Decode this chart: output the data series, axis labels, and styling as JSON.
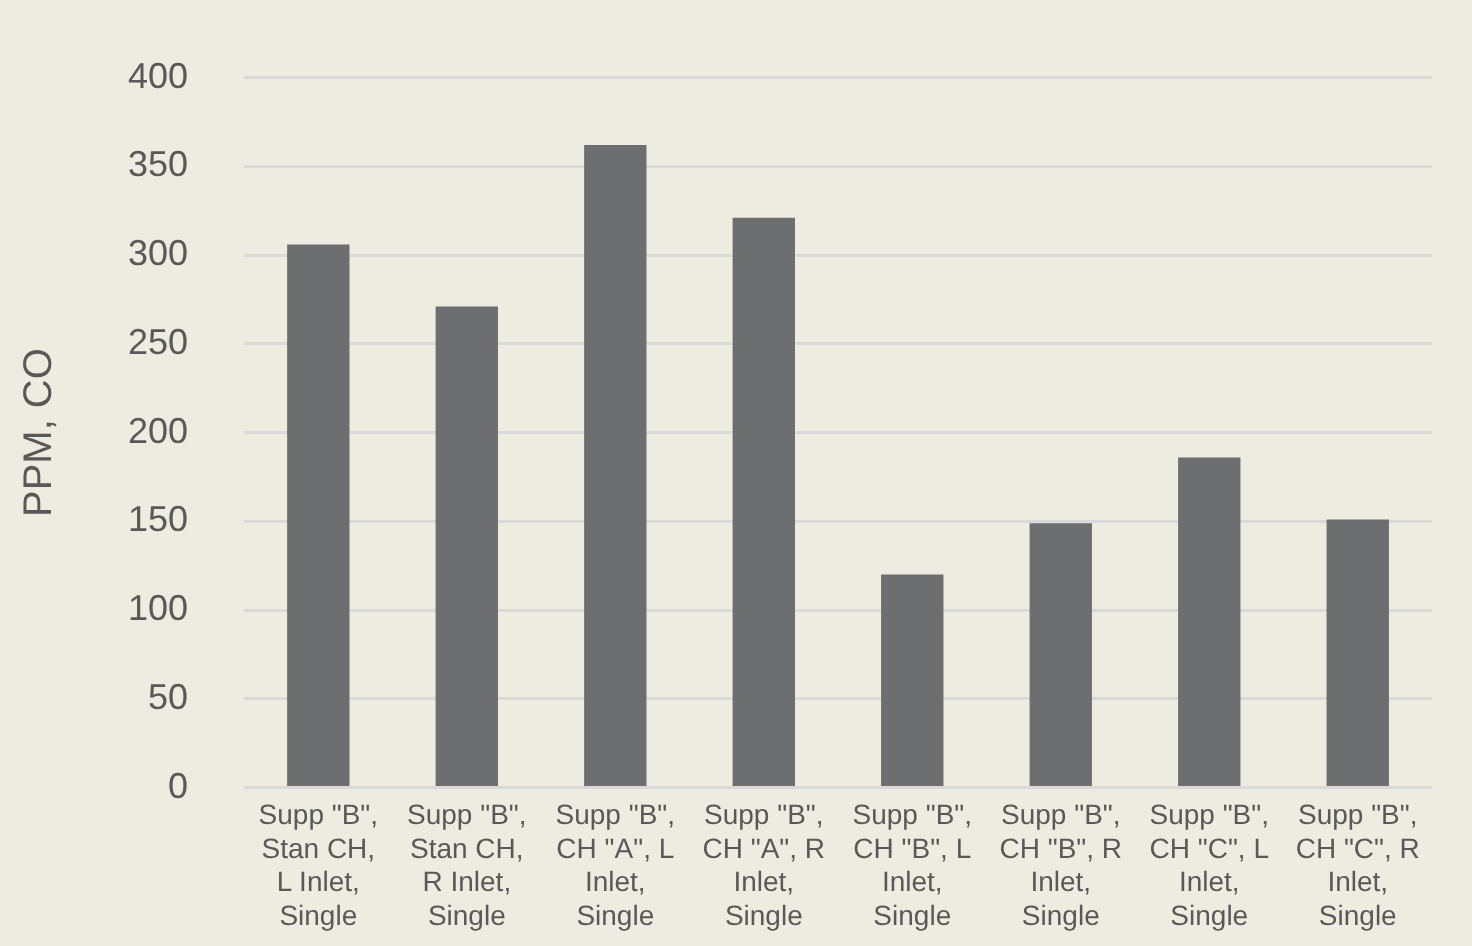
{
  "chart_data": {
    "type": "bar",
    "ylabel": "PPM, CO",
    "categories": [
      "Supp \"B\", Stan CH, L Inlet, Single",
      "Supp \"B\", Stan CH, R Inlet, Single",
      "Supp \"B\", CH \"A\", L Inlet, Single",
      "Supp \"B\", CH \"A\", R Inlet, Single",
      "Supp \"B\", CH \"B\", L Inlet, Single",
      "Supp \"B\", CH \"B\", R Inlet, Single",
      "Supp \"B\", CH \"C\", L Inlet, Single",
      "Supp \"B\", CH \"C\", R Inlet, Single"
    ],
    "values": [
      306,
      271,
      362,
      321,
      120,
      149,
      186,
      151
    ],
    "color": "#6d6e70",
    "ylim": [
      0,
      400
    ],
    "yticks": [
      0,
      50,
      100,
      150,
      200,
      250,
      300,
      350,
      400
    ],
    "grid": "y"
  }
}
